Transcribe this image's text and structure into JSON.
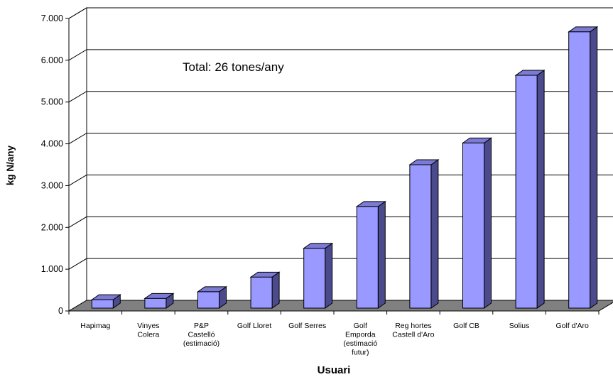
{
  "chart_data": {
    "type": "bar",
    "categories": [
      [
        "Hapimag"
      ],
      [
        "Vinyes",
        "Colera"
      ],
      [
        "P&P",
        "Castelló",
        "(estimació)"
      ],
      [
        "Golf Lloret"
      ],
      [
        "Golf Serres"
      ],
      [
        "Golf",
        "Emporda",
        "(estimació",
        "futur)"
      ],
      [
        "Reg hortes",
        "Castell d'Aro"
      ],
      [
        "Golf CB"
      ],
      [
        "Solius"
      ],
      [
        "Golf d'Aro"
      ]
    ],
    "values": [
      270,
      300,
      460,
      810,
      1500,
      2500,
      3500,
      4020,
      5640,
      6680
    ],
    "xlabel": "Usuari",
    "ylabel": "kg N/any",
    "ylim": [
      0,
      7000
    ],
    "yticks": [
      0,
      1000,
      2000,
      3000,
      4000,
      5000,
      6000,
      7000
    ],
    "ytick_labels": [
      "0",
      "1.000",
      "2.000",
      "3.000",
      "4.000",
      "5.000",
      "6.000",
      "7.000"
    ],
    "annotation": "Total: 26 tones/any",
    "grid": true,
    "style": "3d-column",
    "colors": {
      "bar_front": "#9999ff",
      "bar_side": "#4a4a8c",
      "bar_top": "#7b7bd6",
      "floor": "#808080",
      "grid": "#000000"
    }
  }
}
